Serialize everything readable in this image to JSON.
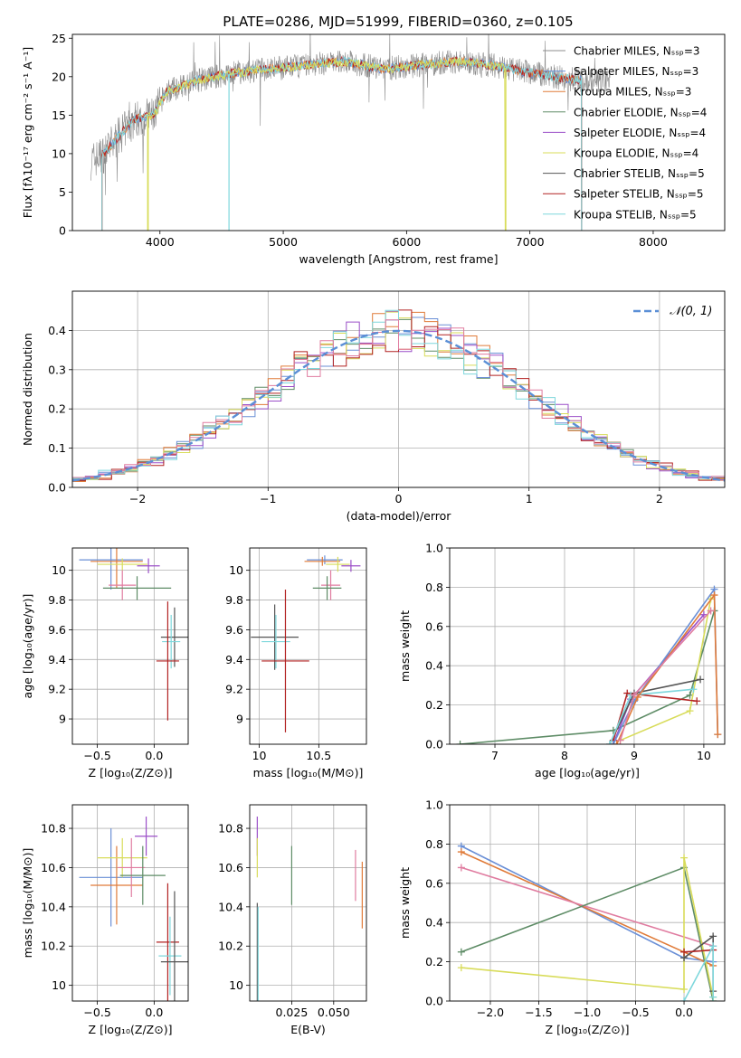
{
  "figure": {
    "title": "PLATE=0286, MJD=51999, FIBERID=0360, z=0.105"
  },
  "colors": {
    "Chabrier MILES": "#8c8c8c",
    "Salpeter MILES": "#6a8fd6",
    "Kroupa MILES": "#e07b39",
    "Chabrier ELODIE": "#5e8c66",
    "Salpeter ELODIE": "#9b4fc8",
    "Kroupa ELODIE": "#d8dc5a",
    "Chabrier STELIB": "#555555",
    "Salpeter STELIB": "#b22222",
    "Kroupa STELIB": "#7ed7dc",
    "extra_pink": "#e07ca0",
    "normal_curve": "#5b8fd6"
  },
  "chart_data": [
    {
      "id": "spectrum",
      "type": "line",
      "title": "PLATE=0286, MJD=51999, FIBERID=0360, z=0.105",
      "xlabel": "wavelength [Angstrom, rest frame]",
      "ylabel": "Flux [fλ10⁻¹⁷ erg cm⁻² s⁻¹ A⁻¹]",
      "xlim": [
        3290,
        8580
      ],
      "ylim": [
        0,
        25.5
      ],
      "xticks": [
        4000,
        5000,
        6000,
        7000,
        8000
      ],
      "yticks": [
        0,
        5,
        10,
        15,
        20,
        25
      ],
      "grid": false,
      "legend_position": "right",
      "legend": [
        {
          "key": "Chabrier MILES",
          "label": "Chabrier MILES, Nₛₛₚ=3"
        },
        {
          "key": "Salpeter MILES",
          "label": "Salpeter MILES, Nₛₛₚ=3"
        },
        {
          "key": "Kroupa MILES",
          "label": "Kroupa MILES, Nₛₛₚ=3"
        },
        {
          "key": "Chabrier ELODIE",
          "label": "Chabrier ELODIE, Nₛₛₚ=4"
        },
        {
          "key": "Salpeter ELODIE",
          "label": "Salpeter ELODIE, Nₛₛₚ=4"
        },
        {
          "key": "Kroupa ELODIE",
          "label": "Kroupa ELODIE, Nₛₛₚ=4"
        },
        {
          "key": "Chabrier STELIB",
          "label": "Chabrier STELIB, Nₛₛₚ=5"
        },
        {
          "key": "Salpeter STELIB",
          "label": "Salpeter STELIB, Nₛₛₚ=5"
        },
        {
          "key": "Kroupa STELIB",
          "label": "Kroupa STELIB, Nₛₛₚ=5"
        }
      ],
      "continuum": {
        "x": [
          3440,
          3550,
          3650,
          3800,
          3950,
          4050,
          4300,
          4600,
          4900,
          5200,
          5500,
          5800,
          6100,
          6400,
          6700,
          7000,
          7200,
          7400
        ],
        "y": [
          9.0,
          10.0,
          12.0,
          14.5,
          15.0,
          18.0,
          19.5,
          20.5,
          21.0,
          21.5,
          22.0,
          21.0,
          21.5,
          22.0,
          21.5,
          20.5,
          20.0,
          19.5
        ]
      },
      "observed_range": [
        3440,
        7650
      ],
      "model_ranges": [
        {
          "key": "Salpeter MILES",
          "from": 3530,
          "to": 7420
        },
        {
          "key": "Kroupa MILES",
          "from": 3530,
          "to": 7420
        },
        {
          "key": "Salpeter STELIB",
          "from": 3530,
          "to": 7420
        },
        {
          "key": "Kroupa STELIB",
          "from": 3530,
          "to": 7420
        },
        {
          "key": "Kroupa ELODIE",
          "from": 3900,
          "to": 6800
        }
      ]
    },
    {
      "id": "residuals",
      "type": "step",
      "xlabel": "(data-model)/error",
      "ylabel": "Normed distribution",
      "xlim": [
        -2.5,
        2.5
      ],
      "ylim": [
        0,
        0.5
      ],
      "xticks": [
        -2,
        -1,
        0,
        1,
        2
      ],
      "yticks": [
        0.0,
        0.1,
        0.2,
        0.3,
        0.4
      ],
      "grid": true,
      "legend": [
        {
          "label": "𝒩(0, 1)",
          "key": "normal_curve"
        }
      ],
      "bin_width": 0.1,
      "series": [
        {
          "key": "Chabrier ELODIE",
          "offset": 0.0
        },
        {
          "key": "Salpeter MILES",
          "offset": 0.02
        },
        {
          "key": "Kroupa MILES",
          "offset": -0.015
        },
        {
          "key": "Salpeter ELODIE",
          "offset": 0.01
        },
        {
          "key": "Kroupa ELODIE",
          "offset": -0.01
        },
        {
          "key": "Salpeter STELIB",
          "offset": 0.025
        },
        {
          "key": "Kroupa STELIB",
          "offset": -0.02
        },
        {
          "key": "extra_pink",
          "offset": 0.015
        }
      ]
    },
    {
      "id": "age_vs_Z",
      "type": "errorbar",
      "xlabel": "Z [log₁₀(Z/Z⊙)]",
      "ylabel": "age  [log₁₀(age/yr)]",
      "xlim": [
        -0.72,
        0.3
      ],
      "ylim": [
        8.83,
        10.15
      ],
      "xticks": [
        -0.5,
        0.0
      ],
      "xtick_labels": [
        "−0.5",
        "0.0"
      ],
      "yticks": [
        9.0,
        9.2,
        9.4,
        9.6,
        9.8,
        10.0
      ],
      "grid": true,
      "points": [
        {
          "key": "Salpeter MILES",
          "x": -0.38,
          "xerr": 0.28,
          "y": 10.07,
          "yerr": 0.2
        },
        {
          "key": "Kroupa MILES",
          "x": -0.33,
          "xerr": 0.23,
          "y": 10.06,
          "yerr": 0.18
        },
        {
          "key": "Kroupa ELODIE",
          "x": -0.28,
          "xerr": 0.22,
          "y": 10.04,
          "yerr": 0.04
        },
        {
          "key": "extra_pink",
          "x": -0.28,
          "xerr": 0.12,
          "y": 9.9,
          "yerr": 0.1
        },
        {
          "key": "Chabrier ELODIE",
          "x": -0.15,
          "xerr": 0.3,
          "y": 9.88,
          "yerr": 0.08
        },
        {
          "key": "Salpeter ELODIE",
          "x": -0.05,
          "xerr": 0.1,
          "y": 10.03,
          "yerr": 0.05
        },
        {
          "key": "Chabrier STELIB",
          "x": 0.18,
          "xerr": 0.12,
          "y": 9.55,
          "yerr": 0.2
        },
        {
          "key": "Kroupa STELIB",
          "x": 0.15,
          "xerr": 0.08,
          "y": 9.52,
          "yerr": 0.18
        },
        {
          "key": "Salpeter STELIB",
          "x": 0.12,
          "xerr": 0.1,
          "y": 9.39,
          "yerr": 0.4
        }
      ]
    },
    {
      "id": "age_vs_mass",
      "type": "errorbar",
      "xlabel": "mass [log₁₀(M/M⊙)]",
      "ylabel": "",
      "xlim": [
        9.92,
        10.9
      ],
      "ylim": [
        8.83,
        10.15
      ],
      "xticks": [
        10.0,
        10.5
      ],
      "yticks": [
        9.0,
        9.2,
        9.4,
        9.6,
        9.8,
        10.0
      ],
      "grid": true,
      "points": [
        {
          "key": "Salpeter MILES",
          "x": 10.55,
          "xerr": 0.15,
          "y": 10.07,
          "yerr": 0.03
        },
        {
          "key": "Kroupa MILES",
          "x": 10.53,
          "xerr": 0.15,
          "y": 10.06,
          "yerr": 0.03
        },
        {
          "key": "Kroupa ELODIE",
          "x": 10.66,
          "xerr": 0.1,
          "y": 10.04,
          "yerr": 0.05
        },
        {
          "key": "Salpeter ELODIE",
          "x": 10.77,
          "xerr": 0.08,
          "y": 10.03,
          "yerr": 0.04
        },
        {
          "key": "extra_pink",
          "x": 10.6,
          "xerr": 0.08,
          "y": 9.9,
          "yerr": 0.1
        },
        {
          "key": "Chabrier ELODIE",
          "x": 10.57,
          "xerr": 0.12,
          "y": 9.88,
          "yerr": 0.08
        },
        {
          "key": "Chabrier STELIB",
          "x": 10.13,
          "xerr": 0.2,
          "y": 9.55,
          "yerr": 0.22
        },
        {
          "key": "Kroupa STELIB",
          "x": 10.14,
          "xerr": 0.12,
          "y": 9.52,
          "yerr": 0.18
        },
        {
          "key": "Salpeter STELIB",
          "x": 10.22,
          "xerr": 0.2,
          "y": 9.39,
          "yerr": 0.48
        }
      ]
    },
    {
      "id": "weight_vs_age",
      "type": "line",
      "xlabel": "age  [log₁₀(age/yr)]",
      "ylabel": "mass weight",
      "xlim": [
        6.35,
        10.3
      ],
      "ylim": [
        0,
        1.0
      ],
      "xticks": [
        7,
        8,
        9,
        10
      ],
      "yticks": [
        0.0,
        0.2,
        0.4,
        0.6,
        0.8,
        1.0
      ],
      "grid": true,
      "series": [
        {
          "key": "Chabrier ELODIE",
          "x": [
            6.5,
            8.7,
            9.8,
            10.15
          ],
          "y": [
            0.0,
            0.07,
            0.25,
            0.68
          ]
        },
        {
          "key": "Salpeter ELODIE",
          "x": [
            8.7,
            8.95,
            10.0
          ],
          "y": [
            0.0,
            0.23,
            0.66
          ]
        },
        {
          "key": "Kroupa ELODIE",
          "x": [
            8.8,
            9.8,
            10.1
          ],
          "y": [
            0.02,
            0.17,
            0.74
          ]
        },
        {
          "key": "Chabrier STELIB",
          "x": [
            8.65,
            9.0,
            9.95
          ],
          "y": [
            0.0,
            0.26,
            0.33
          ]
        },
        {
          "key": "Salpeter STELIB",
          "x": [
            8.7,
            8.9,
            9.9
          ],
          "y": [
            0.02,
            0.26,
            0.22
          ]
        },
        {
          "key": "Kroupa STELIB",
          "x": [
            8.65,
            8.95,
            9.85
          ],
          "y": [
            0.0,
            0.25,
            0.28
          ]
        },
        {
          "key": "Salpeter MILES",
          "x": [
            8.7,
            9.0,
            10.15,
            10.2
          ],
          "y": [
            0.0,
            0.22,
            0.79,
            0.05
          ]
        },
        {
          "key": "Kroupa MILES",
          "x": [
            8.75,
            9.05,
            10.15,
            10.2
          ],
          "y": [
            0.0,
            0.24,
            0.76,
            0.05
          ]
        },
        {
          "key": "extra_pink",
          "x": [
            8.8,
            9.0,
            10.1
          ],
          "y": [
            0.02,
            0.25,
            0.68
          ]
        }
      ]
    },
    {
      "id": "mass_vs_Z",
      "type": "errorbar",
      "xlabel": "Z [log₁₀(Z/Z⊙)]",
      "ylabel": "mass [log₁₀(M/M⊙)]",
      "xlim": [
        -0.72,
        0.3
      ],
      "ylim": [
        9.92,
        10.92
      ],
      "xticks": [
        -0.5,
        0.0
      ],
      "xtick_labels": [
        "−0.5",
        "0.0"
      ],
      "yticks": [
        10.0,
        10.2,
        10.4,
        10.6,
        10.8
      ],
      "grid": true,
      "points": [
        {
          "key": "Salpeter MILES",
          "x": -0.38,
          "xerr": 0.28,
          "y": 10.55,
          "yerr": 0.25
        },
        {
          "key": "Kroupa MILES",
          "x": -0.33,
          "xerr": 0.23,
          "y": 10.51,
          "yerr": 0.2
        },
        {
          "key": "Kroupa ELODIE",
          "x": -0.28,
          "xerr": 0.22,
          "y": 10.65,
          "yerr": 0.1
        },
        {
          "key": "extra_pink",
          "x": -0.2,
          "xerr": 0.12,
          "y": 10.6,
          "yerr": 0.15
        },
        {
          "key": "Chabrier ELODIE",
          "x": -0.1,
          "xerr": 0.2,
          "y": 10.56,
          "yerr": 0.15
        },
        {
          "key": "Salpeter ELODIE",
          "x": -0.07,
          "xerr": 0.1,
          "y": 10.76,
          "yerr": 0.1
        },
        {
          "key": "Salpeter STELIB",
          "x": 0.12,
          "xerr": 0.1,
          "y": 10.22,
          "yerr": 0.3
        },
        {
          "key": "Kroupa STELIB",
          "x": 0.14,
          "xerr": 0.1,
          "y": 10.15,
          "yerr": 0.2
        },
        {
          "key": "Chabrier STELIB",
          "x": 0.18,
          "xerr": 0.12,
          "y": 10.12,
          "yerr": 0.36
        }
      ]
    },
    {
      "id": "mass_vs_ebv",
      "type": "errorbar",
      "xlabel": "E(B-V)",
      "ylabel": "",
      "xlim": [
        0.0,
        0.0695
      ],
      "ylim": [
        9.92,
        10.92
      ],
      "xticks": [
        0.025,
        0.05
      ],
      "xtick_labels": [
        "0.025",
        "0.050"
      ],
      "yticks": [
        10.0,
        10.2,
        10.4,
        10.6,
        10.8
      ],
      "grid": true,
      "points": [
        {
          "key": "Salpeter ELODIE",
          "x": 0.0045,
          "y": 10.76,
          "yerr": 0.1
        },
        {
          "key": "Kroupa ELODIE",
          "x": 0.0045,
          "y": 10.65,
          "yerr": 0.1
        },
        {
          "key": "Chabrier STELIB",
          "x": 0.0045,
          "y": 10.12,
          "yerr": 0.3
        },
        {
          "key": "Kroupa STELIB",
          "x": 0.005,
          "y": 10.15,
          "yerr": 0.25
        },
        {
          "key": "Chabrier ELODIE",
          "x": 0.025,
          "y": 10.56,
          "yerr": 0.15
        },
        {
          "key": "extra_pink",
          "x": 0.063,
          "y": 10.56,
          "yerr": 0.13
        },
        {
          "key": "Kroupa MILES",
          "x": 0.067,
          "y": 10.46,
          "yerr": 0.17
        }
      ]
    },
    {
      "id": "weight_vs_Z",
      "type": "line",
      "xlabel": "Z [log₁₀(Z/Z⊙)]",
      "ylabel": "mass weight",
      "xlim": [
        -2.42,
        0.42
      ],
      "ylim": [
        0,
        1.0
      ],
      "xticks": [
        -2.0,
        -1.5,
        -1.0,
        -0.5,
        0.0
      ],
      "xtick_labels": [
        "−2.0",
        "−1.5",
        "−1.0",
        "−0.5",
        "0.0"
      ],
      "yticks": [
        0.0,
        0.2,
        0.4,
        0.6,
        0.8,
        1.0
      ],
      "grid": true,
      "series": [
        {
          "key": "Salpeter MILES",
          "x": [
            -2.3,
            0.0,
            0.3
          ],
          "y": [
            0.79,
            0.22,
            0.2
          ]
        },
        {
          "key": "Kroupa MILES",
          "x": [
            -2.3,
            0.0,
            0.3
          ],
          "y": [
            0.76,
            0.25,
            0.18
          ]
        },
        {
          "key": "extra_pink",
          "x": [
            -2.3,
            0.3
          ],
          "y": [
            0.68,
            0.28
          ]
        },
        {
          "key": "Chabrier ELODIE",
          "x": [
            -2.3,
            0.0,
            0.3
          ],
          "y": [
            0.25,
            0.68,
            0.0
          ]
        },
        {
          "key": "Kroupa ELODIE",
          "x": [
            -2.3,
            0.0,
            0.0,
            0.3
          ],
          "y": [
            0.17,
            0.06,
            0.73,
            0.02
          ]
        },
        {
          "key": "Chabrier STELIB",
          "x": [
            0.0,
            0.3,
            0.3
          ],
          "y": [
            0.22,
            0.33,
            0.05
          ]
        },
        {
          "key": "Salpeter STELIB",
          "x": [
            0.0,
            0.3
          ],
          "y": [
            0.25,
            0.26
          ]
        },
        {
          "key": "Kroupa STELIB",
          "x": [
            0.0,
            0.3,
            0.3
          ],
          "y": [
            0.0,
            0.28,
            0.02
          ]
        }
      ]
    }
  ]
}
